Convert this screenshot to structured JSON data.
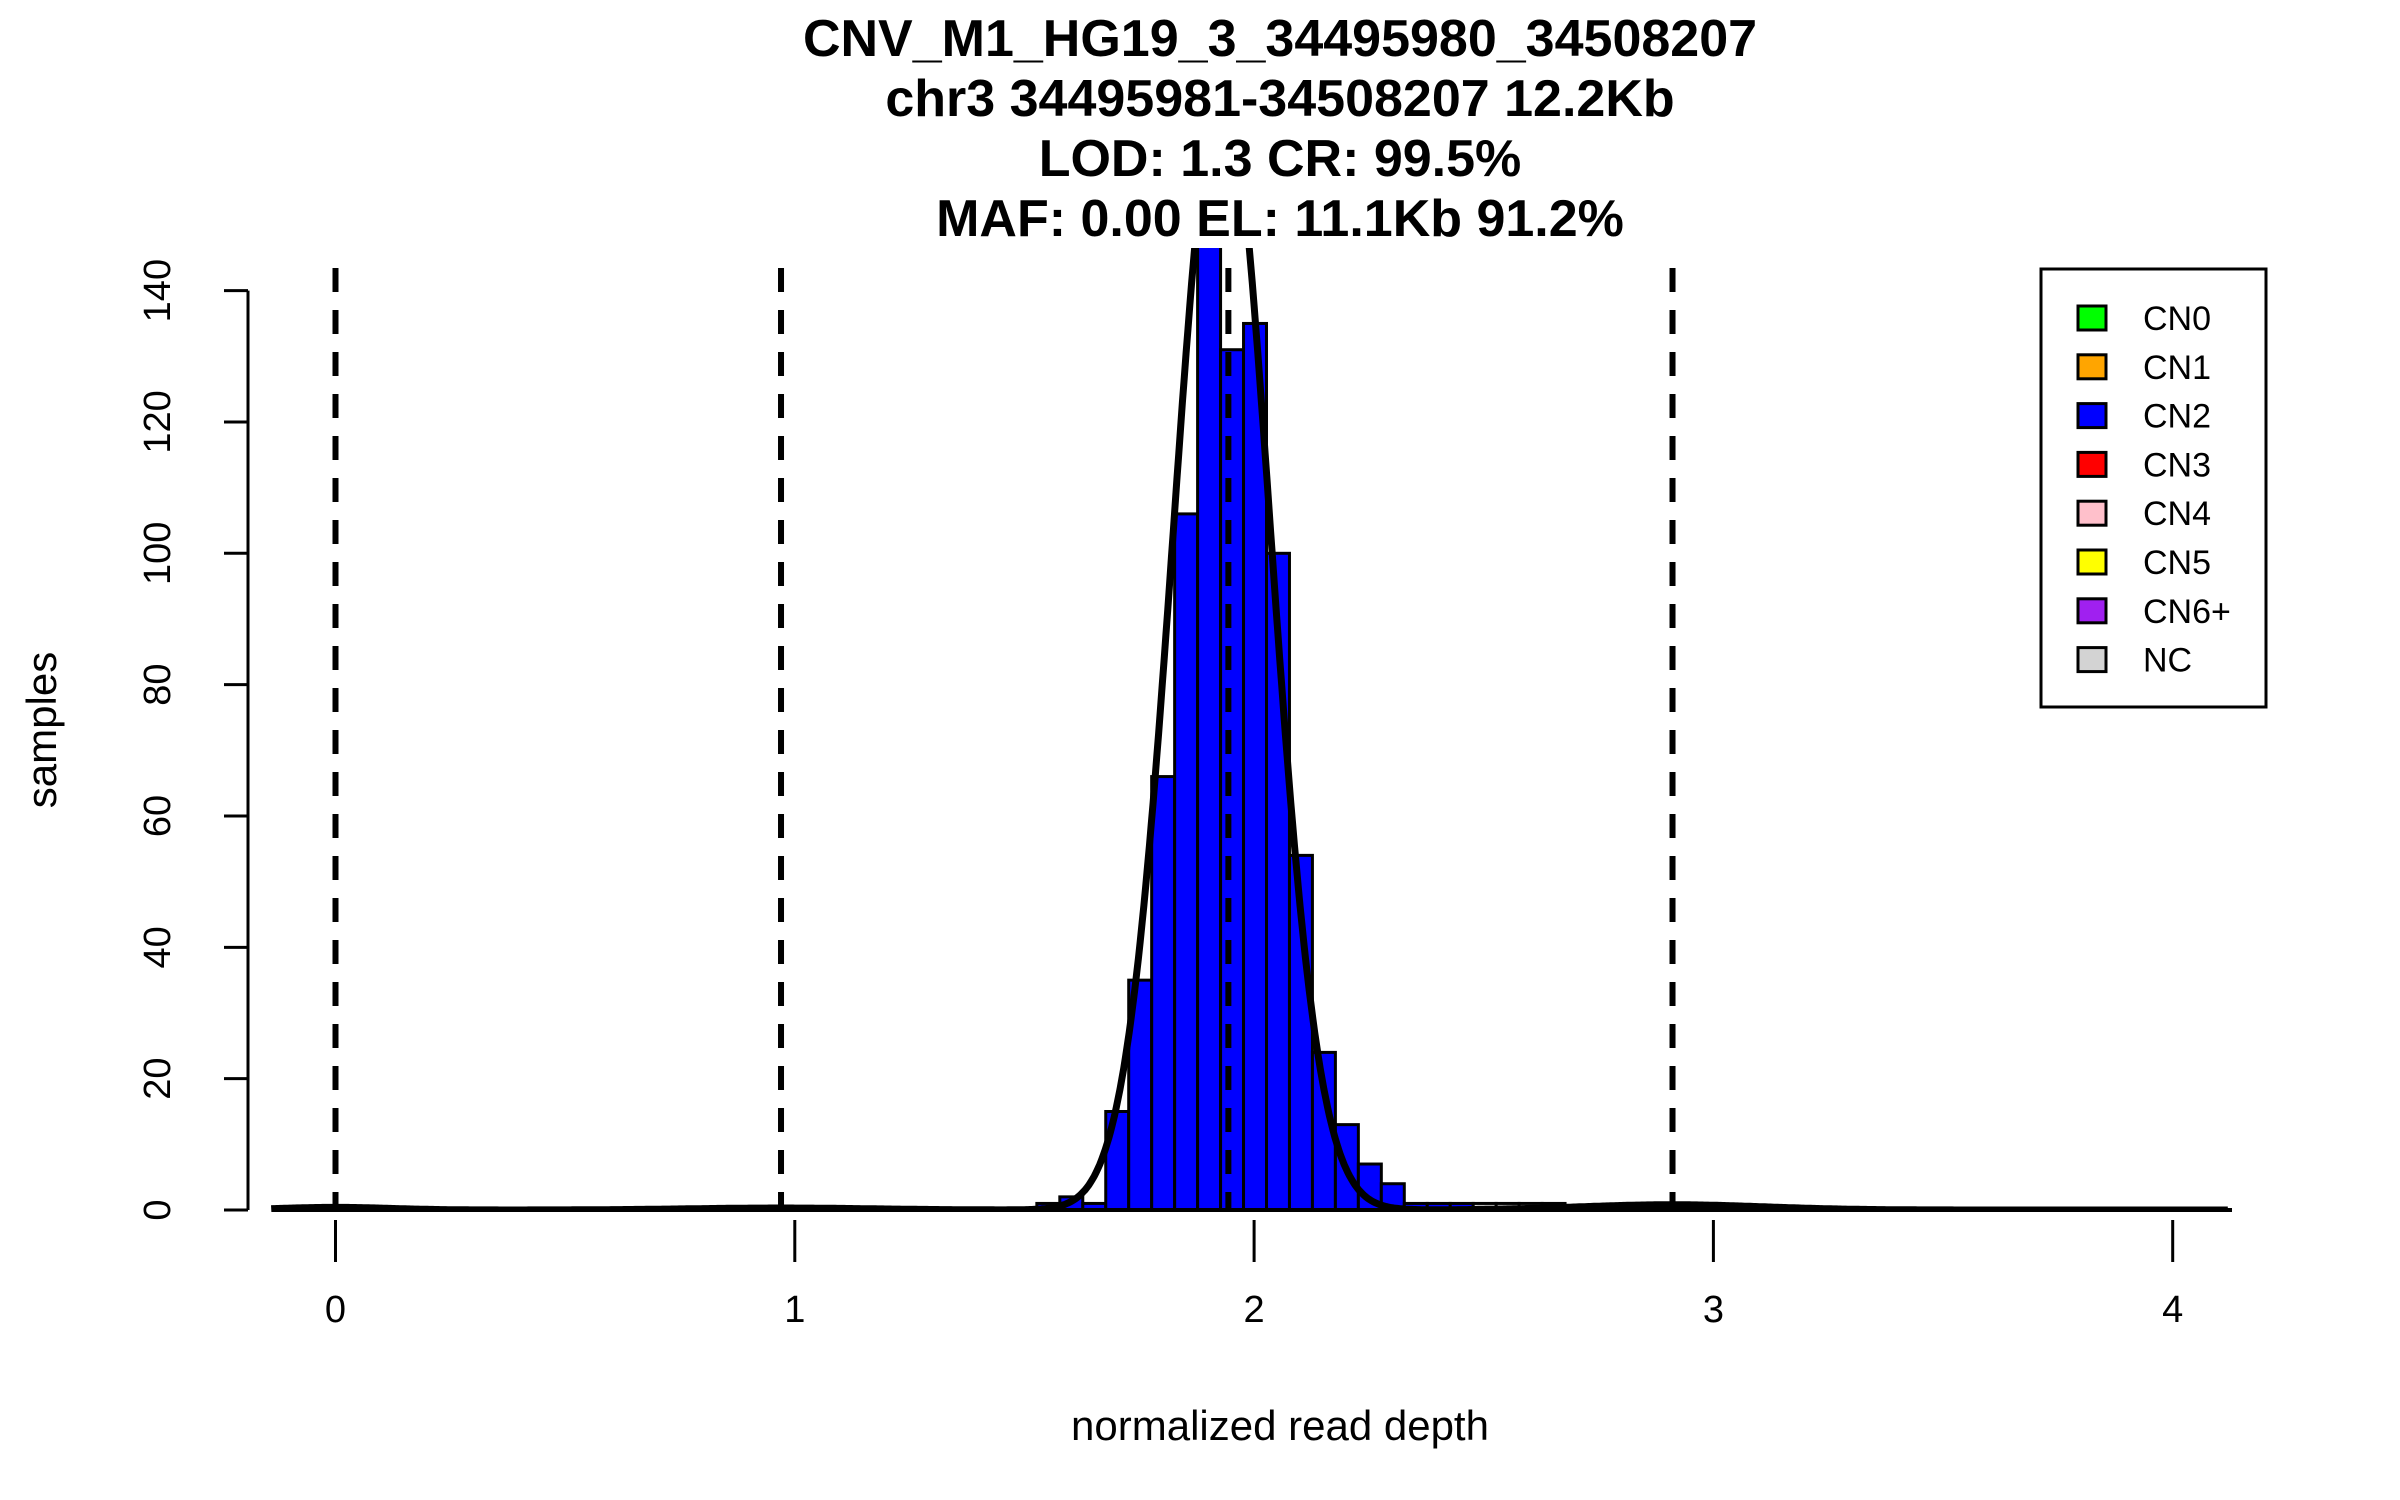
{
  "chart_data": {
    "type": "bar",
    "title_lines": [
      "CNV_M1_HG19_3_34495980_34508207",
      "chr3 34495981-34508207 12.2Kb",
      "LOD: 1.3 CR: 99.5%",
      "MAF: 0.00 EL: 11.1Kb 91.2%"
    ],
    "xlabel": "normalized read depth",
    "ylabel": "samples",
    "xlim": [
      -0.14,
      4.12
    ],
    "ylim": [
      0,
      140
    ],
    "x_ticks": [
      "0",
      "1",
      "2",
      "3",
      "4"
    ],
    "y_ticks": [
      "0",
      "20",
      "40",
      "60",
      "80",
      "100",
      "120",
      "140"
    ],
    "bin_width": 0.05,
    "bins": [
      {
        "start": 1.527,
        "count": 1,
        "fill": "#0000ff"
      },
      {
        "start": 1.577,
        "count": 2,
        "fill": "#0000ff"
      },
      {
        "start": 1.627,
        "count": 1,
        "fill": "#0000ff"
      },
      {
        "start": 1.677,
        "count": 15,
        "fill": "#0000ff"
      },
      {
        "start": 1.727,
        "count": 35,
        "fill": "#0000ff"
      },
      {
        "start": 1.777,
        "count": 66,
        "fill": "#0000ff"
      },
      {
        "start": 1.827,
        "count": 106,
        "fill": "#0000ff"
      },
      {
        "start": 1.877,
        "count": 147,
        "fill": "#0000ff"
      },
      {
        "start": 1.927,
        "count": 131,
        "fill": "#0000ff"
      },
      {
        "start": 1.977,
        "count": 135,
        "fill": "#0000ff"
      },
      {
        "start": 2.027,
        "count": 100,
        "fill": "#0000ff"
      },
      {
        "start": 2.077,
        "count": 54,
        "fill": "#0000ff"
      },
      {
        "start": 2.127,
        "count": 24,
        "fill": "#0000ff"
      },
      {
        "start": 2.177,
        "count": 13,
        "fill": "#0000ff"
      },
      {
        "start": 2.227,
        "count": 7,
        "fill": "#0000ff"
      },
      {
        "start": 2.277,
        "count": 4,
        "fill": "#0000ff"
      },
      {
        "start": 2.327,
        "count": 1,
        "fill": "#0000ff"
      },
      {
        "start": 2.377,
        "count": 1,
        "fill": "#0000ff"
      },
      {
        "start": 2.427,
        "count": 1,
        "fill": "#0000ff"
      },
      {
        "start": 2.477,
        "count": 1,
        "fill": "#d3d3d3"
      },
      {
        "start": 2.527,
        "count": 1,
        "fill": "#d3d3d3"
      },
      {
        "start": 2.577,
        "count": 1,
        "fill": "#d3d3d3"
      },
      {
        "start": 2.627,
        "count": 1,
        "fill": "#d3d3d3"
      },
      {
        "start": 2.827,
        "count": 1,
        "fill": "#0000ff"
      }
    ],
    "dashed_lines_x": [
      0.0,
      0.97,
      1.944,
      2.911
    ],
    "density_components": [
      {
        "mean": 1.93,
        "sd": 0.105,
        "peak": 172
      },
      {
        "mean": 0.0,
        "sd": 0.12,
        "peak": 0.4
      },
      {
        "mean": 0.97,
        "sd": 0.2,
        "peak": 0.3
      },
      {
        "mean": 2.91,
        "sd": 0.2,
        "peak": 0.8
      }
    ],
    "legend": {
      "placement": "top-right",
      "items": [
        {
          "label": "CN0",
          "color": "#00ff00"
        },
        {
          "label": "CN1",
          "color": "#ffa500"
        },
        {
          "label": "CN2",
          "color": "#0000ff"
        },
        {
          "label": "CN3",
          "color": "#ff0000"
        },
        {
          "label": "CN4",
          "color": "#ffc0cb"
        },
        {
          "label": "CN5",
          "color": "#ffff00"
        },
        {
          "label": "CN6+",
          "color": "#a020f0"
        },
        {
          "label": "NC",
          "color": "#d3d3d3"
        }
      ]
    }
  }
}
